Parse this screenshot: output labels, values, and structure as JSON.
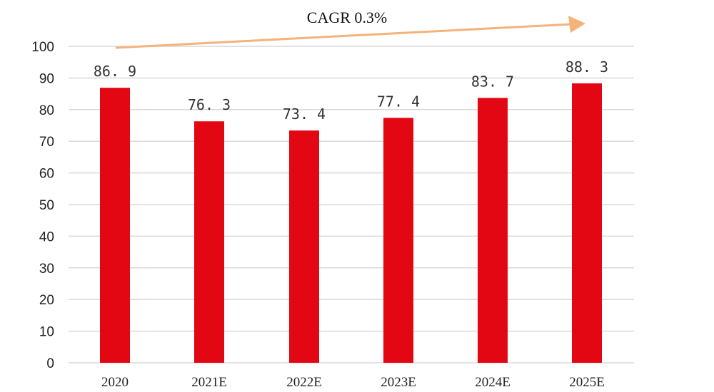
{
  "chart_data": {
    "type": "bar",
    "categories": [
      "2020",
      "2021E",
      "2022E",
      "2023E",
      "2024E",
      "2025E"
    ],
    "values": [
      86.9,
      76.3,
      73.4,
      77.4,
      83.7,
      88.3
    ],
    "value_labels": [
      "86. 9",
      "76. 3",
      "73. 4",
      "77. 4",
      "83. 7",
      "88. 3"
    ],
    "ylim": [
      0,
      100
    ],
    "yticks": [
      0,
      10,
      20,
      30,
      40,
      50,
      60,
      70,
      80,
      90,
      100
    ],
    "ytick_labels": [
      "0",
      "10",
      "20",
      "30",
      "40",
      "50",
      "60",
      "70",
      "80",
      "90",
      "100"
    ],
    "grid": true,
    "legend": "none",
    "annotation": "CAGR 0.3%",
    "colors": {
      "bar": "#e30613",
      "arrow": "#f5b27a",
      "grid": "#d9d9d9"
    }
  }
}
